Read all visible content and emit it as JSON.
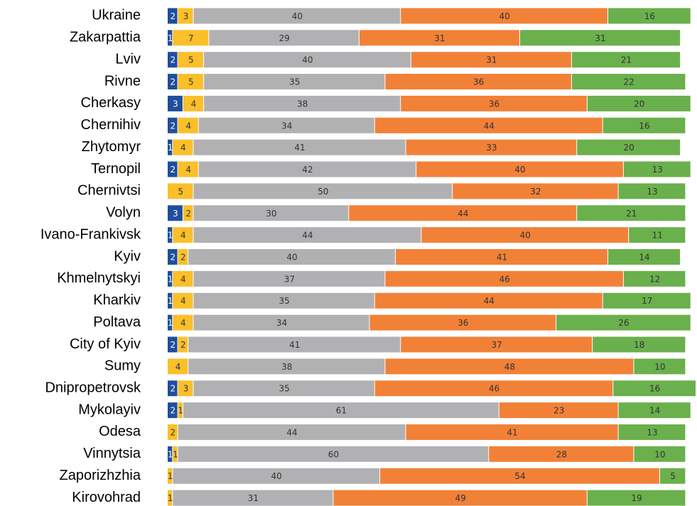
{
  "chart_data": {
    "type": "stacked-barh",
    "categories": [
      "Ukraine",
      "Zakarpattia",
      "Lviv",
      "Rivne",
      "Cherkasy",
      "Chernihiv",
      "Zhytomyr",
      "Ternopil",
      "Chernivtsi",
      "Volyn",
      "Ivano-Frankivsk",
      "Kyiv",
      "Khmelnytskyi",
      "Kharkiv",
      "Poltava",
      "City of Kyiv",
      "Sumy",
      "Dnipropetrovsk",
      "Mykolayiv",
      "Odesa",
      "Vinnytsia",
      "Zaporizhzhia",
      "Kirovohrad"
    ],
    "series": [
      {
        "color": "#1f4e9c",
        "values": [
          2,
          1,
          2,
          2,
          3,
          2,
          1,
          2,
          0,
          3,
          1,
          2,
          1,
          1,
          1,
          2,
          0,
          2,
          2,
          0,
          1,
          0,
          0
        ]
      },
      {
        "color": "#fbbf2a",
        "values": [
          3,
          7,
          5,
          5,
          4,
          4,
          4,
          4,
          5,
          2,
          4,
          2,
          4,
          4,
          4,
          2,
          4,
          3,
          1,
          2,
          1,
          1,
          1
        ]
      },
      {
        "color": "#b1b1b4",
        "values": [
          40,
          29,
          40,
          35,
          38,
          34,
          41,
          42,
          50,
          30,
          44,
          40,
          37,
          35,
          34,
          41,
          38,
          35,
          61,
          44,
          60,
          40,
          31
        ]
      },
      {
        "color": "#f28138",
        "values": [
          40,
          31,
          31,
          36,
          36,
          44,
          33,
          40,
          32,
          44,
          40,
          41,
          46,
          44,
          36,
          37,
          48,
          46,
          23,
          41,
          28,
          54,
          49
        ]
      },
      {
        "color": "#6ab04c",
        "values": [
          16,
          31,
          21,
          22,
          20,
          16,
          20,
          13,
          13,
          21,
          11,
          14,
          12,
          17,
          26,
          18,
          10,
          16,
          14,
          13,
          10,
          5,
          19
        ]
      }
    ],
    "xlim": [
      0,
      102
    ]
  }
}
